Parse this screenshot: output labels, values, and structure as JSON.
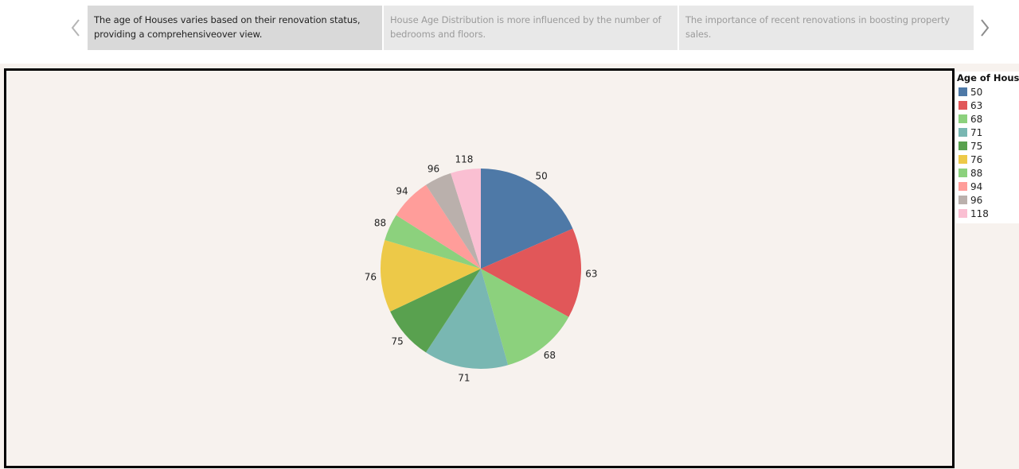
{
  "story": {
    "prev_icon": "chevron-left-icon",
    "next_icon": "chevron-right-icon",
    "points": [
      {
        "text": "The age of Houses varies based on  their   renovation status, providing a comprehensiveover view.",
        "active": true
      },
      {
        "text": "House Age Distribution is more influenced by the number of bedrooms and floors.",
        "active": false
      },
      {
        "text": "The importance of recent renovations in boosting property sales.",
        "active": false
      }
    ]
  },
  "legend": {
    "title": "Age of House"
  },
  "chart_data": {
    "type": "pie",
    "title": "",
    "legend_title": "Age of House",
    "legend_position": "right",
    "categories": [
      "50",
      "63",
      "68",
      "71",
      "75",
      "76",
      "88",
      "94",
      "96",
      "118"
    ],
    "values": [
      19.0,
      15.0,
      13.0,
      14.0,
      9.0,
      12.0,
      4.5,
      7.0,
      4.5,
      5.0
    ],
    "labels": [
      "50",
      "63",
      "68",
      "71",
      "75",
      "76",
      "88",
      "94",
      "96",
      "118"
    ],
    "colors": [
      "#4e79a7",
      "#e15759",
      "#8cd17d",
      "#79b7b2",
      "#59a14f",
      "#edc948",
      "#8cd17d",
      "#ff9d9a",
      "#bab0ac",
      "#fabfd2"
    ]
  }
}
